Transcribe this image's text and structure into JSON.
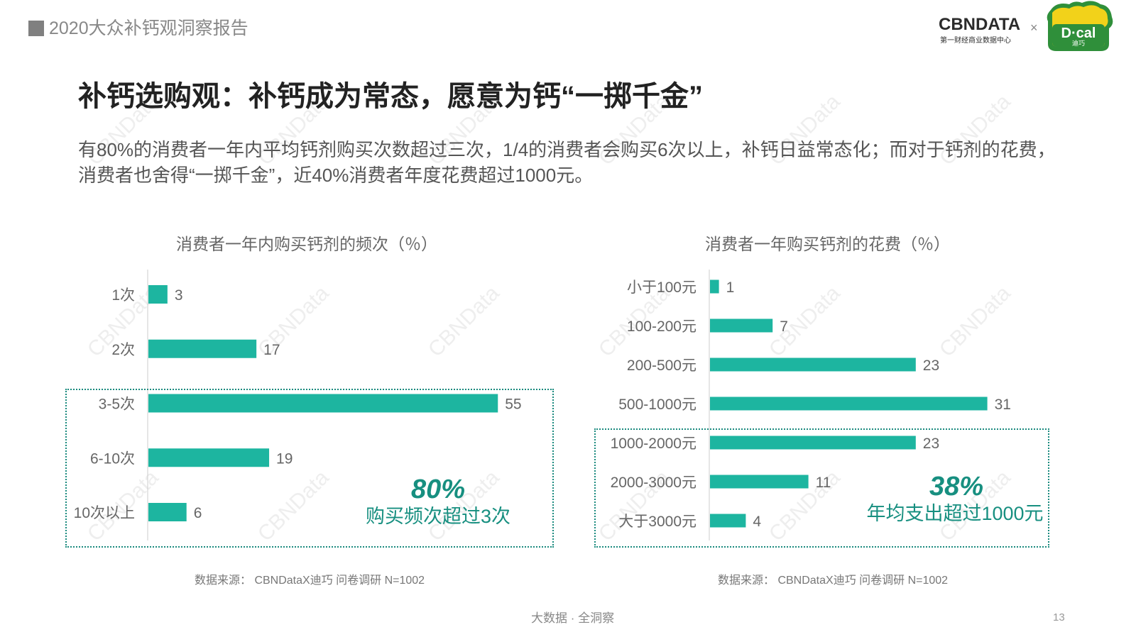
{
  "header": {
    "report_title": "2020大众补钙观洞察报告",
    "brand_logo_text": "CBNDATA",
    "brand_logo_sub": "第一财经商业数据中心",
    "partner_sep": "×",
    "partner_logo_text": "D·cal",
    "partner_logo_sub": "迪巧"
  },
  "main": {
    "title": "补钙选购观：补钙成为常态，愿意为钙“一掷千金”",
    "summary": "有80%的消费者一年内平均钙剂购买次数超过三次，1/4的消费者会购买6次以上，补钙日益常态化；而对于钙剂的花费，消费者也舍得“一掷千金”，近40%消费者年度花费超过1000元。"
  },
  "watermark": "CBNData",
  "colors": {
    "bar": "#1db5a0",
    "accent": "#178f80",
    "axis": "#cccccc"
  },
  "chart_data": [
    {
      "type": "bar",
      "orientation": "horizontal",
      "title": "消费者一年内购买钙剂的频次（％）",
      "categories": [
        "1次",
        "2次",
        "3-5次",
        "6-10次",
        "10次以上"
      ],
      "values": [
        3,
        17,
        55,
        19,
        6
      ],
      "callout": {
        "value": "80%",
        "text": "购买频次超过3次",
        "highlight_categories": [
          "3-5次",
          "6-10次",
          "10次以上"
        ]
      },
      "source": "数据来源： CBNDataX迪巧 问卷调研 N=1002"
    },
    {
      "type": "bar",
      "orientation": "horizontal",
      "title": "消费者一年购买钙剂的花费（％）",
      "categories": [
        "小于100元",
        "100-200元",
        "200-500元",
        "500-1000元",
        "1000-2000元",
        "2000-3000元",
        "大于3000元"
      ],
      "values": [
        1,
        7,
        23,
        31,
        23,
        11,
        4
      ],
      "callout": {
        "value": "38%",
        "text": "年均支出超过1000元",
        "highlight_categories": [
          "1000-2000元",
          "2000-3000元",
          "大于3000元"
        ]
      },
      "source": "数据来源： CBNDataX迪巧 问卷调研 N=1002"
    }
  ],
  "footer": {
    "tagline": "大数据 · 全洞察",
    "page": "13"
  }
}
